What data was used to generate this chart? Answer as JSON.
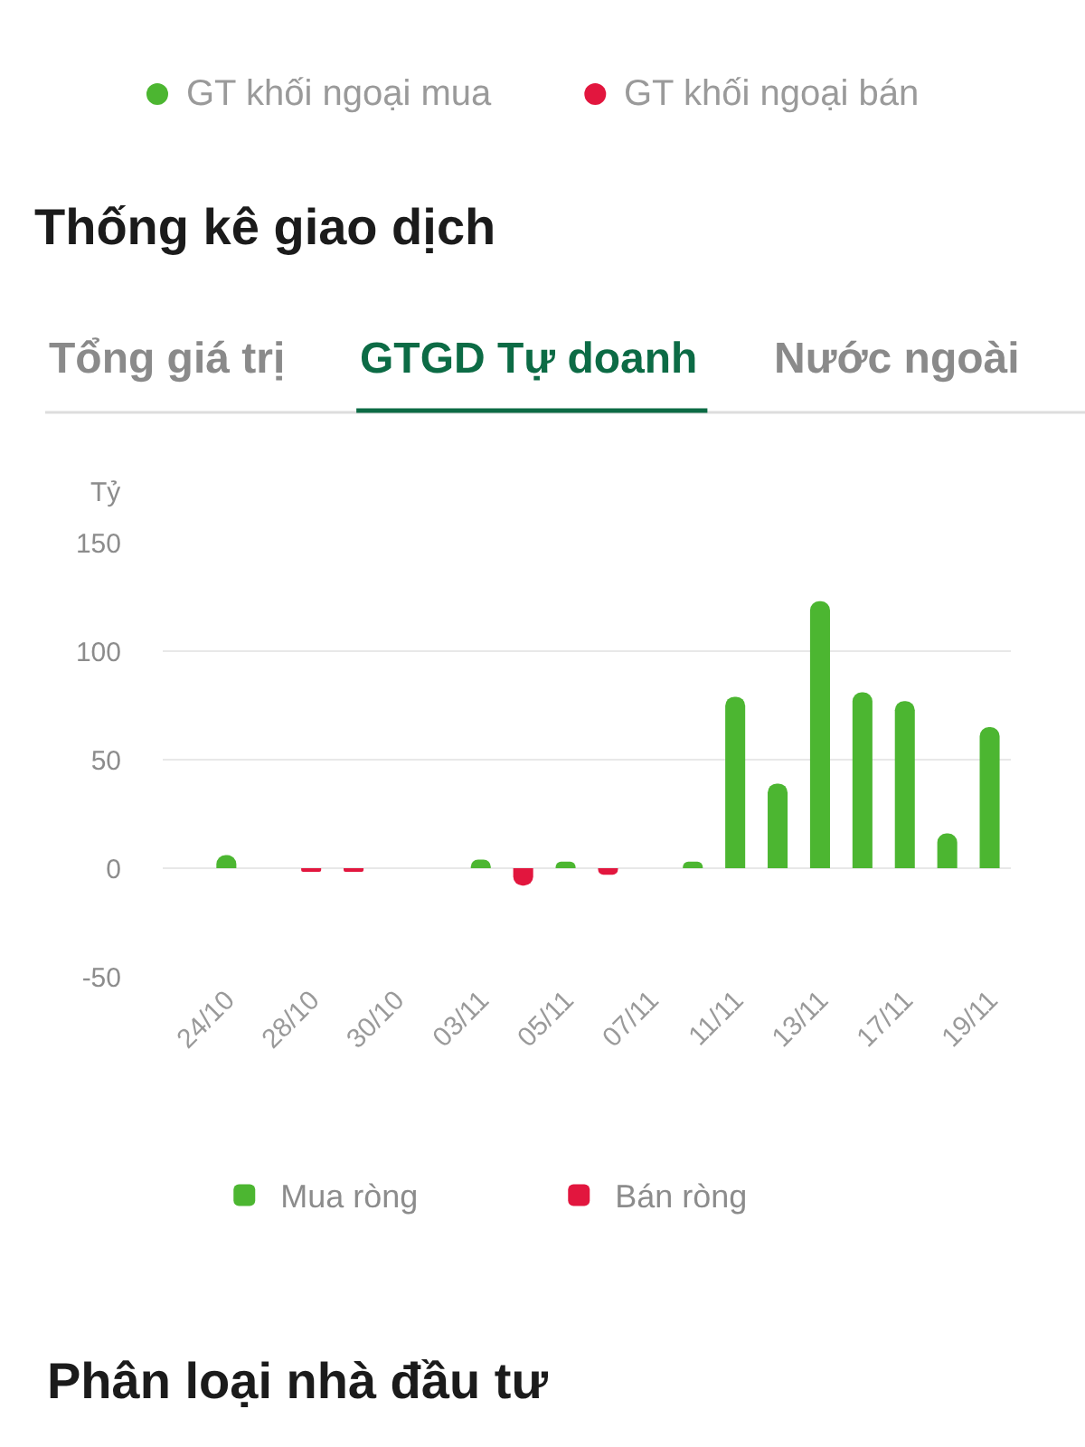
{
  "chart_data": {
    "type": "bar",
    "title": "Thống kê giao dịch",
    "ylabel": "Tỷ",
    "annotations": [
      "GT khối ngoại mua",
      "GT khối ngoại bán",
      "Tổng giá trị",
      "GTGD Tự doanh",
      "Nước ngoài",
      "Phân loại nhà đầu tư"
    ],
    "categories": [
      null,
      "24/10",
      null,
      "28/10",
      null,
      "30/10",
      null,
      "03/11",
      null,
      "05/11",
      null,
      "07/11",
      null,
      "11/11",
      null,
      "13/11",
      null,
      "17/11",
      null,
      "19/11"
    ],
    "series": [
      {
        "name": "Mua ròng",
        "color": "#4cb631",
        "values": [
          null,
          6,
          null,
          null,
          null,
          null,
          null,
          4,
          null,
          3,
          null,
          null,
          3,
          79,
          39,
          123,
          81,
          77,
          16,
          65
        ]
      },
      {
        "name": "Bán ròng",
        "color": "#e2163e",
        "values": [
          null,
          null,
          null,
          -1,
          -1,
          null,
          null,
          null,
          -8,
          null,
          -3,
          null,
          null,
          null,
          null,
          null,
          null,
          null,
          null,
          null
        ]
      }
    ],
    "ylim": [
      -50,
      150
    ],
    "yticks": [
      -50,
      0,
      50,
      100,
      150
    ],
    "grid": "y",
    "legend": "bottom"
  }
}
